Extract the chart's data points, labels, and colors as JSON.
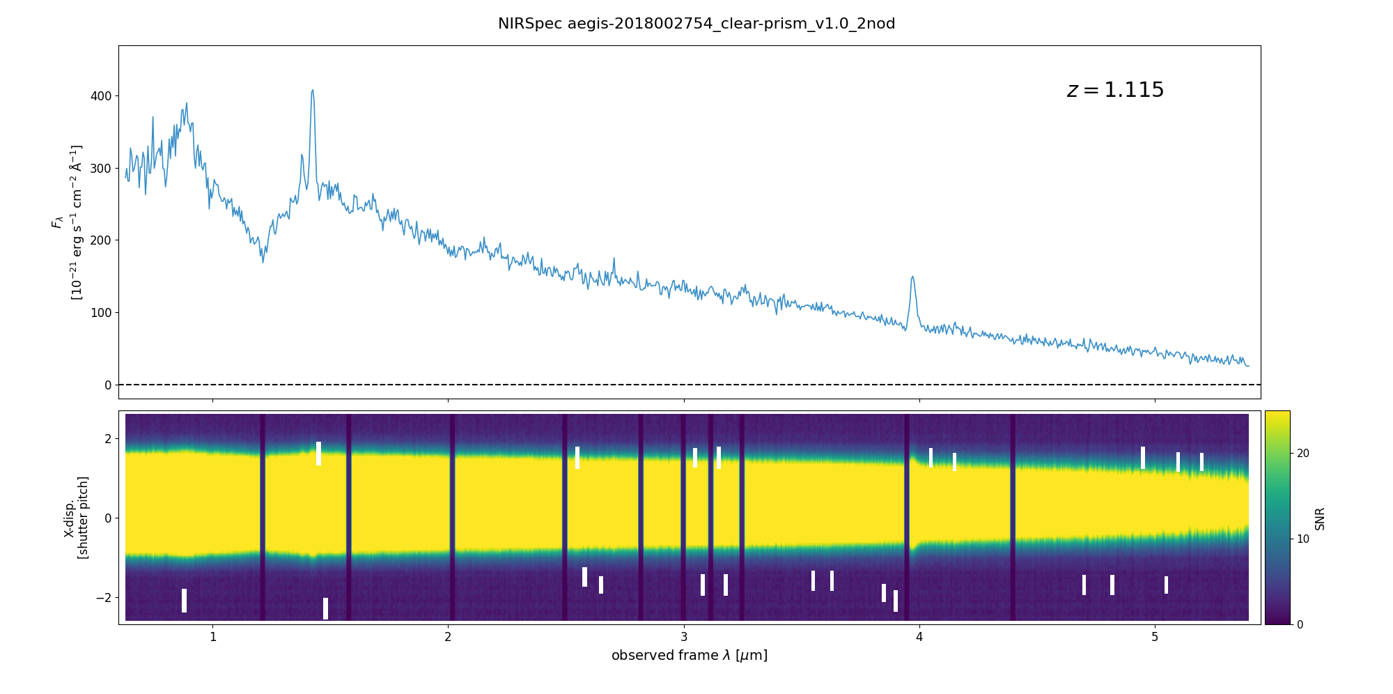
{
  "title": "NIRSpec aegis-2018002754_clear-prism_v1.0_2nod",
  "redshift_label": "$z = 1.115$",
  "xlabel": "observed frame $\\lambda$ [$\\mu$m]",
  "ylabel1": "$F_\\lambda$\n[$10^{-21}$ erg s$^{-1}$ cm$^{-2}$ Å$^{-1}$]",
  "ylabel2": "X-disp.\n[shutter pitch]",
  "colorbar_label": "SNR",
  "colorbar_ticks": [
    0,
    10,
    20
  ],
  "xlim": [
    0.6,
    5.45
  ],
  "ylim1": [
    -20,
    470
  ],
  "ylim2": [
    -2.7,
    2.7
  ],
  "line_color": "#3a8fc7",
  "line_width": 1.2,
  "cmap": "viridis",
  "snr_min": 0,
  "snr_max": 25,
  "background_color": "white",
  "dashed_zero_color": "black"
}
